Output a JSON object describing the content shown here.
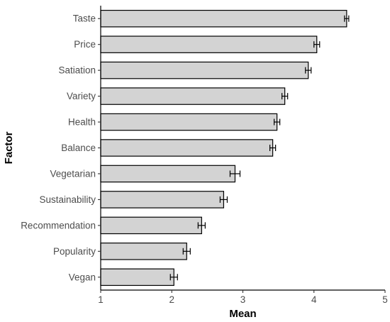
{
  "chart_data": {
    "type": "bar",
    "orientation": "horizontal",
    "xlabel": "Mean",
    "ylabel": "Factor",
    "xlim": [
      1,
      5
    ],
    "x_ticks": [
      1,
      2,
      3,
      4,
      5
    ],
    "grid": false,
    "categories": [
      "Taste",
      "Price",
      "Satiation",
      "Variety",
      "Health",
      "Balance",
      "Vegetarian",
      "Sustainability",
      "Recommendation",
      "Popularity",
      "Vegan"
    ],
    "values": [
      4.46,
      4.04,
      3.92,
      3.59,
      3.48,
      3.42,
      2.89,
      2.73,
      2.42,
      2.21,
      2.03
    ],
    "errors": [
      0.03,
      0.04,
      0.04,
      0.04,
      0.04,
      0.04,
      0.07,
      0.05,
      0.05,
      0.05,
      0.05
    ],
    "bar_fill": "#d3d3d3",
    "bar_stroke": "#000000"
  }
}
